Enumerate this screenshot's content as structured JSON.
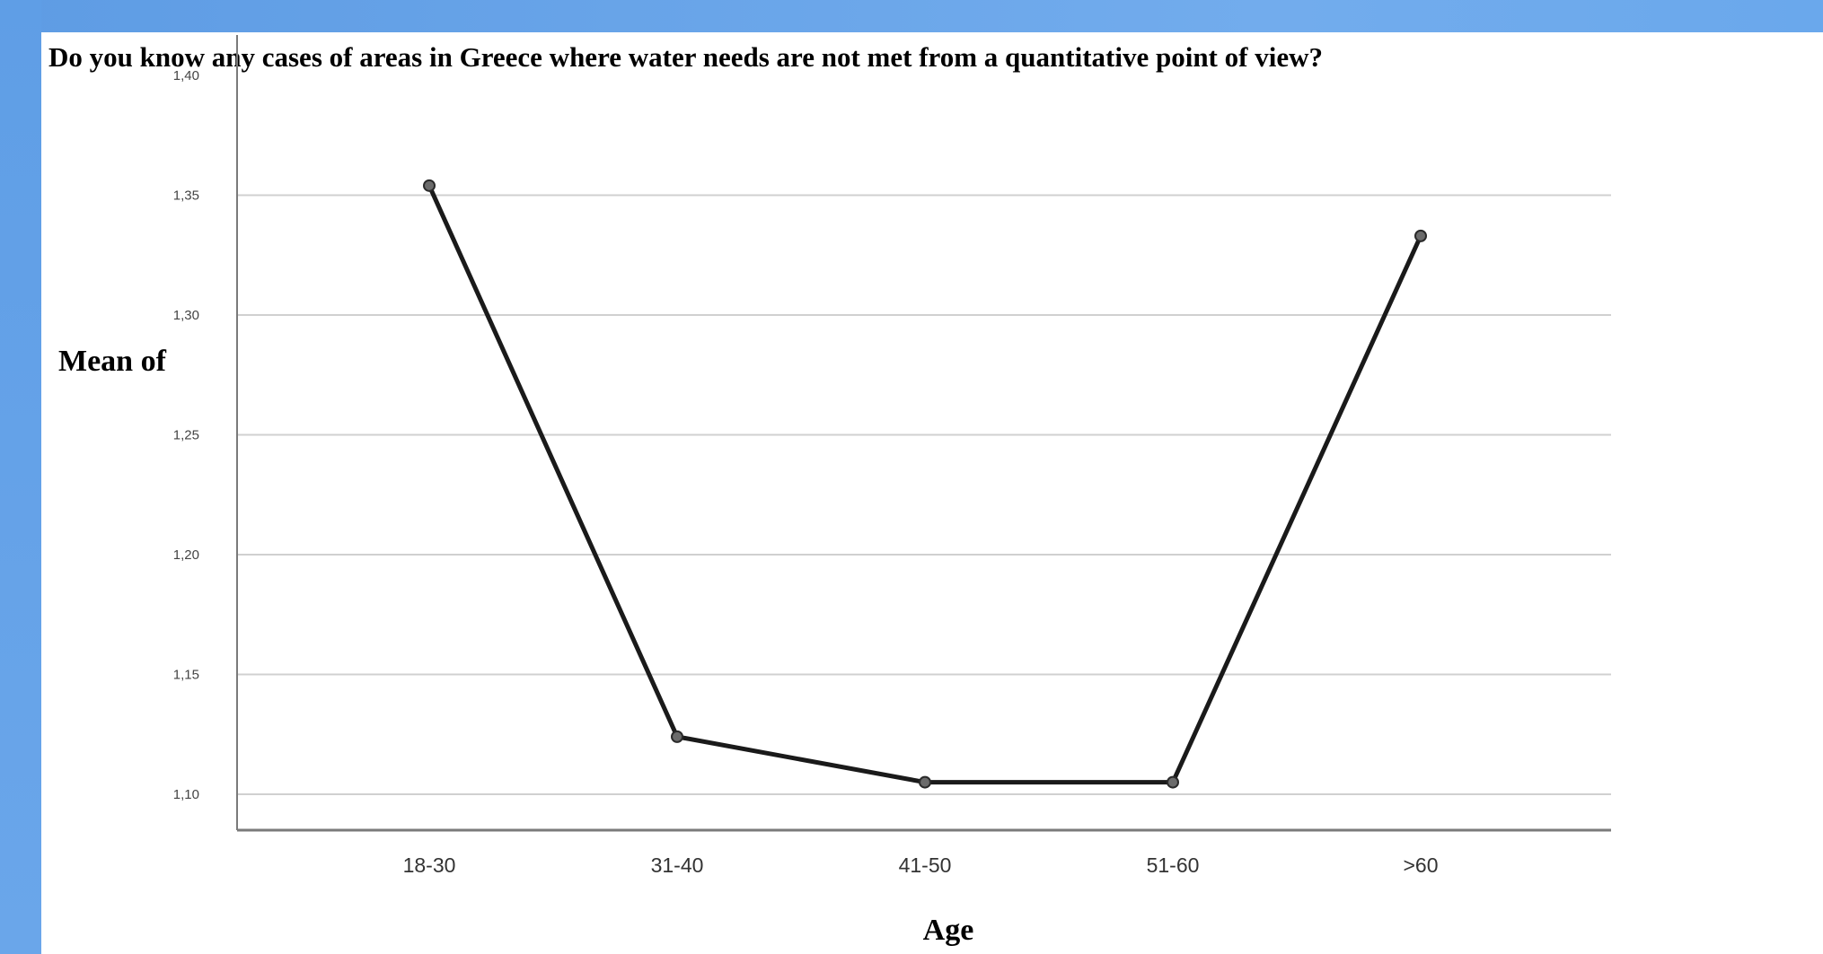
{
  "chart_data": {
    "type": "line",
    "title": "Do you know any cases of areas in Greece where water needs are not met from a quantitative point of view?",
    "xlabel": "Age",
    "ylabel": "Mean of",
    "categories": [
      "18-30",
      "31-40",
      "41-50",
      "51-60",
      ">60"
    ],
    "values": [
      1.354,
      1.124,
      1.105,
      1.105,
      1.333
    ],
    "ylim": [
      1.085,
      1.4
    ],
    "yticks": [
      1.1,
      1.15,
      1.2,
      1.25,
      1.3,
      1.35,
      1.4
    ],
    "ytick_labels": [
      "1,10",
      "1,15",
      "1,20",
      "1,25",
      "1,30",
      "1,35",
      "1,40"
    ],
    "grid": true,
    "colors": {
      "line": "#1a1a1a",
      "marker": "#6b6b6b",
      "grid": "#d0d0d0",
      "axis": "#7a7a7a"
    }
  }
}
